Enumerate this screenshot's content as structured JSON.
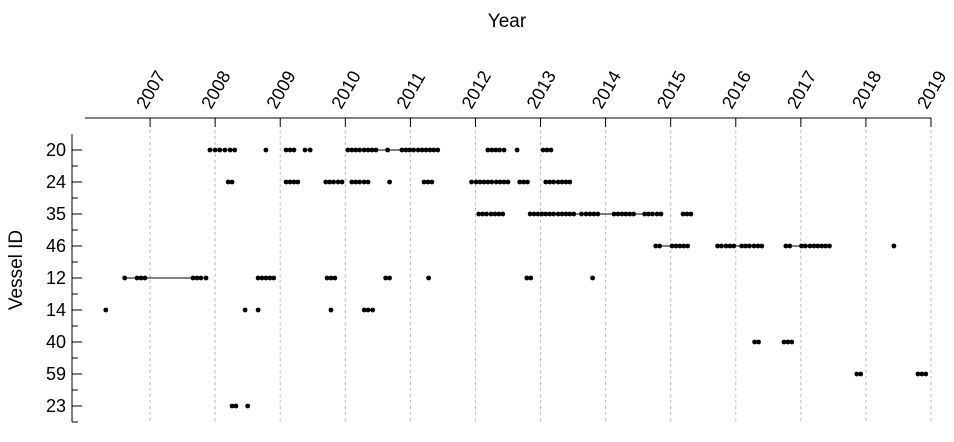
{
  "chart_data": {
    "type": "timeline",
    "title": "Year",
    "y_label": "Vessel ID",
    "xlim": [
      2006.0,
      2019.0
    ],
    "xticks": [
      2007,
      2008,
      2009,
      2010,
      2011,
      2012,
      2013,
      2014,
      2015,
      2016,
      2017,
      2018,
      2019
    ],
    "grid": true,
    "color": "#000000",
    "categories": [
      "20",
      "24",
      "35",
      "46",
      "12",
      "14",
      "40",
      "59",
      "23"
    ],
    "series": [
      {
        "x": [
          2007.92,
          2008.0,
          2008.07,
          2008.15,
          2008.23,
          2008.3,
          null,
          2008.78,
          null,
          2009.09,
          2009.15,
          2009.21,
          null,
          2009.38,
          2009.46,
          null,
          2010.04,
          2010.1,
          2010.16,
          2010.22,
          2010.29,
          2010.35,
          2010.41,
          2010.47,
          2010.65,
          2010.87,
          2010.93,
          2010.99,
          2011.05,
          2011.12,
          2011.18,
          2011.24,
          2011.3,
          2011.36,
          2011.42,
          null,
          2012.19,
          2012.25,
          2012.31,
          2012.37,
          2012.44,
          null,
          2012.64,
          null,
          2013.04,
          2013.1,
          2013.16
        ]
      },
      {
        "x": [
          2008.2,
          2008.26,
          null,
          2009.09,
          2009.15,
          2009.21,
          2009.27,
          null,
          2009.7,
          2009.76,
          2009.82,
          2009.89,
          2009.95,
          null,
          2010.1,
          2010.16,
          2010.22,
          2010.29,
          2010.35,
          null,
          2010.68,
          null,
          2011.21,
          2011.27,
          2011.33,
          null,
          2011.94,
          2012.01,
          2012.07,
          2012.13,
          2012.19,
          2012.25,
          2012.32,
          2012.38,
          2012.44,
          2012.5,
          null,
          2012.68,
          2012.74,
          2012.8,
          null,
          2013.08,
          2013.14,
          2013.2,
          2013.27,
          2013.33,
          2013.39,
          2013.45
        ]
      },
      {
        "x": [
          2012.05,
          2012.11,
          2012.17,
          2012.24,
          2012.3,
          2012.36,
          2012.42,
          null,
          2012.84,
          2012.9,
          2012.96,
          2013.02,
          2013.08,
          2013.14,
          2013.2,
          2013.27,
          2013.33,
          2013.39,
          2013.45,
          2013.51,
          2013.63,
          2013.7,
          2013.76,
          2013.82,
          2013.88,
          2014.13,
          2014.19,
          2014.25,
          2014.31,
          2014.37,
          2014.43,
          2014.6,
          2014.66,
          2014.72,
          2014.79,
          2014.85,
          null,
          2015.19,
          2015.25,
          2015.31
        ]
      },
      {
        "x": [
          2014.77,
          2014.83,
          2015.02,
          2015.08,
          2015.14,
          2015.2,
          2015.26,
          null,
          2015.72,
          2015.78,
          2015.85,
          2015.91,
          2015.97,
          2016.09,
          2016.15,
          2016.21,
          2016.28,
          2016.34,
          2016.4,
          null,
          2016.77,
          2016.83,
          2017.01,
          2017.07,
          2017.14,
          2017.2,
          2017.26,
          2017.32,
          2017.38,
          2017.44,
          null,
          2018.43
        ]
      },
      {
        "x": [
          2006.61,
          2006.8,
          2006.86,
          2006.92,
          2007.66,
          2007.72,
          2007.78,
          2007.86,
          null,
          2008.66,
          2008.72,
          2008.78,
          2008.84,
          2008.9,
          null,
          2009.72,
          2009.78,
          2009.84,
          null,
          2010.62,
          2010.68,
          null,
          2011.28,
          null,
          2012.79,
          2012.85,
          null,
          2013.8
        ]
      },
      {
        "x": [
          2006.32,
          null,
          2008.46,
          null,
          2008.66,
          null,
          2009.78,
          null,
          2010.29,
          2010.35,
          2010.42
        ]
      },
      {
        "x": [
          2016.29,
          2016.35,
          null,
          2016.74,
          2016.8,
          2016.86
        ]
      },
      {
        "x": [
          2017.86,
          2017.92,
          null,
          2018.8,
          2018.86,
          2018.92
        ]
      },
      {
        "x": [
          2008.26,
          2008.32,
          null,
          2008.5
        ]
      }
    ]
  }
}
